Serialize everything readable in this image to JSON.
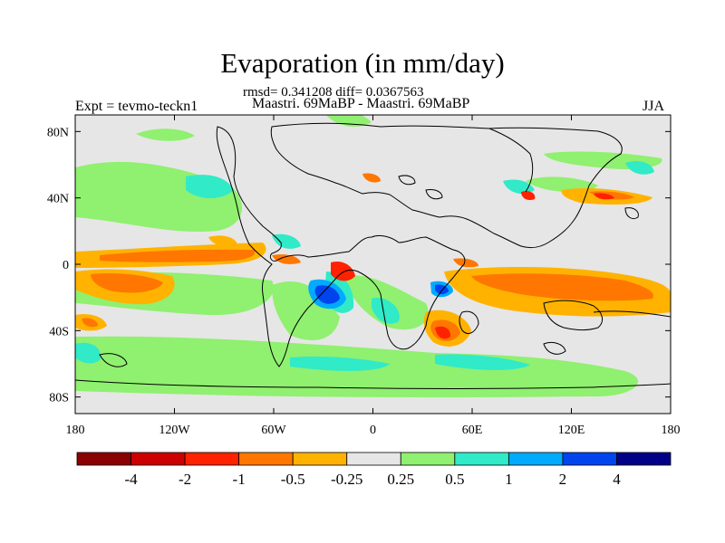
{
  "title": "Evaporation (in mm/day)",
  "stats": "rmsd= 0.341208 diff= 0.0367563",
  "experiment": "Expt = tevmo-teckn1",
  "difference_label": "Maastri.  69MaBP - Maastri.  69MaBP",
  "season": "JJA",
  "lat_ticks": [
    {
      "label": "80N",
      "lat": 80
    },
    {
      "label": "40N",
      "lat": 40
    },
    {
      "label": "0",
      "lat": 0
    },
    {
      "label": "40S",
      "lat": -40
    },
    {
      "label": "80S",
      "lat": -80
    }
  ],
  "lon_ticks": [
    {
      "label": "180",
      "lon": -180
    },
    {
      "label": "120W",
      "lon": -120
    },
    {
      "label": "60W",
      "lon": -60
    },
    {
      "label": "0",
      "lon": 0
    },
    {
      "label": "60E",
      "lon": 60
    },
    {
      "label": "120E",
      "lon": 120
    },
    {
      "label": "180",
      "lon": 180
    }
  ],
  "colorbar": {
    "colors": [
      "#8b0000",
      "#cc0000",
      "#ff2200",
      "#ff7700",
      "#ffb300",
      "#e6e6e6",
      "#90f070",
      "#30eac8",
      "#00aaff",
      "#0044ee",
      "#000088"
    ],
    "labels": [
      "-4",
      "-2",
      "-1",
      "-0.5",
      "-0.25",
      "0.25",
      "0.5",
      "1",
      "2",
      "4"
    ]
  },
  "colors": {
    "neutral": "#e6e6e6",
    "green": "#90f070",
    "cyan": "#30eac8",
    "lightblue": "#00aaff",
    "blue": "#0044ee",
    "yellow": "#ffb300",
    "orange": "#ff7700",
    "red": "#ff2200"
  }
}
